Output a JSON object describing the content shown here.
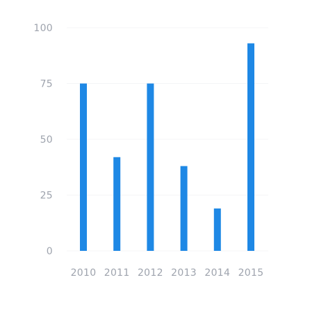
{
  "chart_data": {
    "type": "bar",
    "title": "",
    "xlabel": "",
    "ylabel": "",
    "categories": [
      "2010",
      "2011",
      "2012",
      "2013",
      "2014",
      "2015"
    ],
    "values": [
      75,
      42,
      75,
      38,
      19,
      93
    ],
    "ylim": [
      0,
      100
    ],
    "yticks": [
      0,
      25,
      50,
      75,
      100
    ],
    "ytick_labels": [
      "0",
      "25",
      "50",
      "75",
      "100"
    ],
    "grid": true,
    "legend": "none"
  },
  "colors": {
    "bar": "#1e88e5",
    "tick_text": "#9ea3ad",
    "grid": "#f4f5f7",
    "background": "#ffffff"
  }
}
